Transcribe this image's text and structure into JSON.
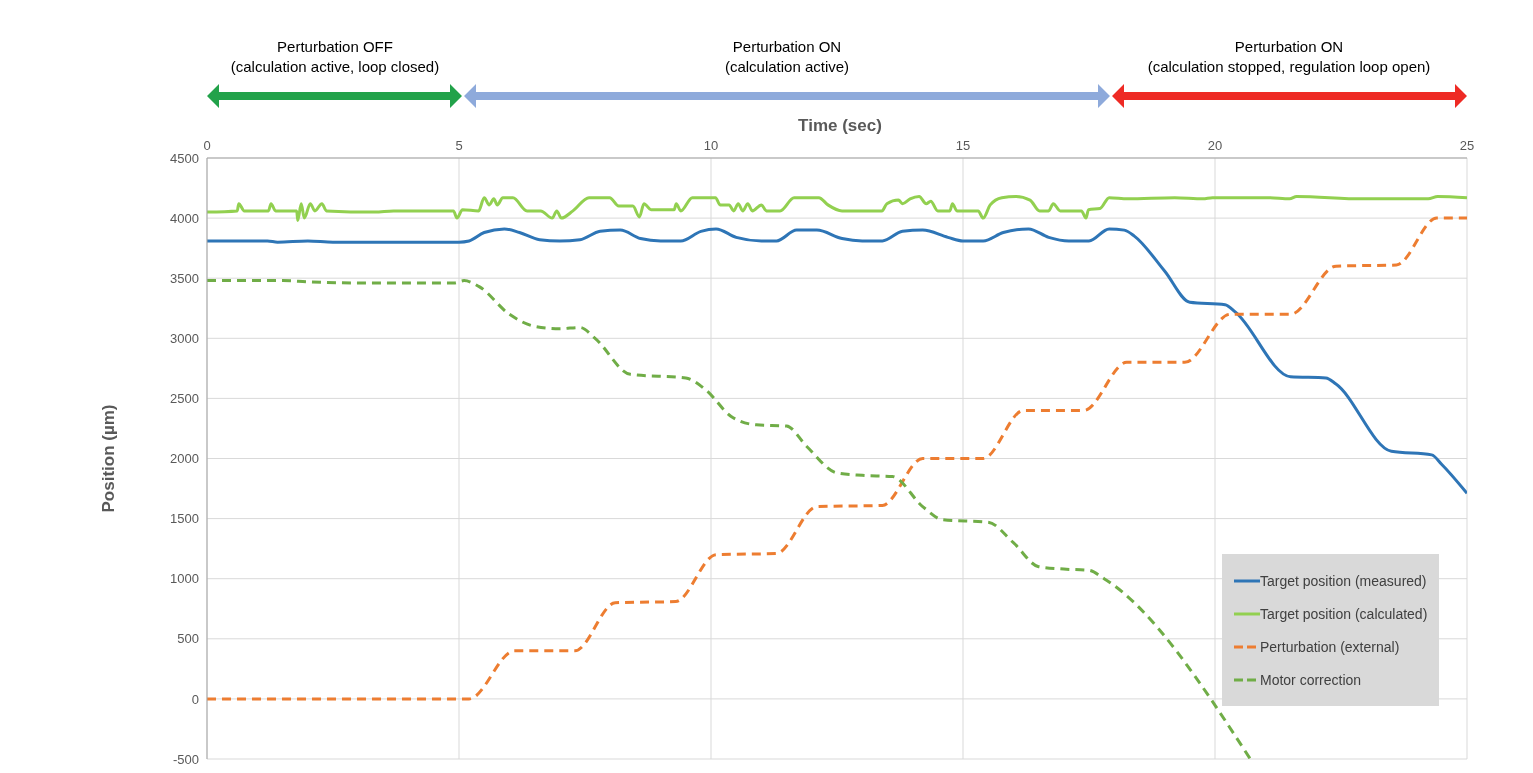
{
  "chart_data": {
    "type": "line",
    "xlabel": "Time (sec)",
    "ylabel": "Position (µm)",
    "annotations": [
      "Perturbation OFF\n(calculation active, loop closed)",
      "Perturbation ON\n(calculation active)",
      "Perturbation ON\n(calculation stopped, regulation loop open)"
    ],
    "xlim": [
      0,
      25
    ],
    "xticks": [
      0,
      5,
      10,
      15,
      20,
      25
    ],
    "ylim": [
      -500,
      4500
    ],
    "yticks": [
      -500,
      0,
      500,
      1000,
      1500,
      2000,
      2500,
      3000,
      3500,
      4000,
      4500
    ],
    "grid": true,
    "legend": "bottom right",
    "marker": "none",
    "series": [
      {
        "name": "Target position (measured)",
        "color": "#2e75b6",
        "line_style": "solid",
        "x": [
          0,
          1.2,
          1.4,
          2,
          2.5,
          3,
          5,
          5.2,
          5.5,
          5.9,
          6.2,
          6.6,
          7.0,
          7.4,
          7.8,
          8.2,
          8.6,
          9.0,
          9.4,
          9.8,
          10.1,
          10.5,
          11.0,
          11.3,
          11.7,
          12.1,
          12.6,
          13.0,
          13.4,
          13.8,
          14.2,
          14.7,
          15.0,
          15.4,
          15.8,
          16.3,
          16.7,
          17.1,
          17.5,
          17.9,
          18.2,
          18.4,
          19.0,
          19.5,
          20.2,
          20.4,
          21.5,
          22.2,
          22.4,
          23.5,
          24.3,
          24.5,
          25
        ],
        "values": [
          3810,
          3810,
          3800,
          3810,
          3800,
          3800,
          3800,
          3810,
          3880,
          3910,
          3880,
          3820,
          3810,
          3820,
          3890,
          3900,
          3830,
          3810,
          3810,
          3890,
          3910,
          3840,
          3810,
          3810,
          3900,
          3900,
          3830,
          3810,
          3810,
          3890,
          3900,
          3840,
          3810,
          3810,
          3880,
          3910,
          3840,
          3810,
          3810,
          3910,
          3900,
          3850,
          3560,
          3300,
          3280,
          3220,
          2680,
          2670,
          2620,
          2060,
          2030,
          1950,
          1710
        ]
      },
      {
        "name": "Target position (calculated)",
        "color": "#92d050",
        "line_style": "solid",
        "x": [
          0,
          0.6,
          0.63,
          0.74,
          1.22,
          1.27,
          1.36,
          1.78,
          1.8,
          1.87,
          1.93,
          2.05,
          2.14,
          2.28,
          2.37,
          3.33,
          3.7,
          4.25,
          4.89,
          4.96,
          5.07,
          5.39,
          5.5,
          5.6,
          5.69,
          5.76,
          5.87,
          6.07,
          6.35,
          6.62,
          6.85,
          6.94,
          7.03,
          7.26,
          7.58,
          7.99,
          8.17,
          8.45,
          8.58,
          8.67,
          8.81,
          9.27,
          9.31,
          9.4,
          9.63,
          10.09,
          10.18,
          10.36,
          10.45,
          10.54,
          10.63,
          10.73,
          10.82,
          11.0,
          11.1,
          11.37,
          11.65,
          12.14,
          12.32,
          12.6,
          12.88,
          13.39,
          13.49,
          13.72,
          13.8,
          13.95,
          14.13,
          14.27,
          14.36,
          14.5,
          14.74,
          14.79,
          14.88,
          15.3,
          15.4,
          15.54,
          15.77,
          16.05,
          16.33,
          16.52,
          16.7,
          16.79,
          16.93,
          17.35,
          17.44,
          17.49,
          17.72,
          17.9,
          18.27,
          19.2,
          19.76,
          19.95,
          21.06,
          21.48,
          21.62,
          22.93,
          24.23,
          24.42,
          25
        ],
        "values": [
          4050,
          4060,
          4120,
          4060,
          4060,
          4120,
          4060,
          4060,
          3980,
          4120,
          4000,
          4120,
          4060,
          4120,
          4060,
          4050,
          4060,
          4060,
          4060,
          4000,
          4070,
          4060,
          4170,
          4110,
          4160,
          4110,
          4170,
          4170,
          4060,
          4060,
          4000,
          4060,
          4000,
          4060,
          4170,
          4170,
          4100,
          4100,
          4010,
          4120,
          4070,
          4070,
          4120,
          4060,
          4170,
          4170,
          4110,
          4110,
          4060,
          4120,
          4060,
          4120,
          4060,
          4110,
          4060,
          4060,
          4170,
          4170,
          4110,
          4060,
          4060,
          4060,
          4120,
          4150,
          4120,
          4160,
          4180,
          4120,
          4140,
          4060,
          4060,
          4120,
          4060,
          4060,
          4000,
          4110,
          4170,
          4180,
          4150,
          4060,
          4060,
          4120,
          4060,
          4060,
          4000,
          4070,
          4080,
          4170,
          4160,
          4170,
          4160,
          4170,
          4170,
          4160,
          4180,
          4160,
          4160,
          4180,
          4170
        ]
      },
      {
        "name": "Perturbation (external)",
        "color": "#ed7d31",
        "line_style": "dashed",
        "x": [
          0,
          5.2,
          6.1,
          7.3,
          8.1,
          9.3,
          10.1,
          11.3,
          12.1,
          13.4,
          14.2,
          15.4,
          16.2,
          17.4,
          18.25,
          19.4,
          20.3,
          21.5,
          22.4,
          23.6,
          24.4,
          25
        ],
        "values": [
          0,
          0,
          400,
          400,
          800,
          810,
          1200,
          1210,
          1600,
          1610,
          2000,
          2000,
          2400,
          2400,
          2800,
          2800,
          3200,
          3200,
          3600,
          3610,
          4000,
          4000
        ]
      },
      {
        "name": "Motor correction",
        "color": "#70ad47",
        "line_style": "dashed",
        "x": [
          0,
          1.5,
          2,
          3,
          4.9,
          5.1,
          5.4,
          6.0,
          6.5,
          7.0,
          7.4,
          7.7,
          8.4,
          9.5,
          9.9,
          10.4,
          10.9,
          11.5,
          11.9,
          12.5,
          13.0,
          13.6,
          14.2,
          14.6,
          15.5,
          16.0,
          16.5,
          17.0,
          17.5,
          17.8,
          20.7
        ],
        "values": [
          3480,
          3480,
          3470,
          3460,
          3460,
          3480,
          3430,
          3200,
          3100,
          3080,
          3090,
          3000,
          2700,
          2670,
          2570,
          2350,
          2280,
          2270,
          2100,
          1880,
          1860,
          1850,
          1600,
          1490,
          1470,
          1300,
          1100,
          1080,
          1070,
          1000,
          -500
        ]
      }
    ]
  }
}
